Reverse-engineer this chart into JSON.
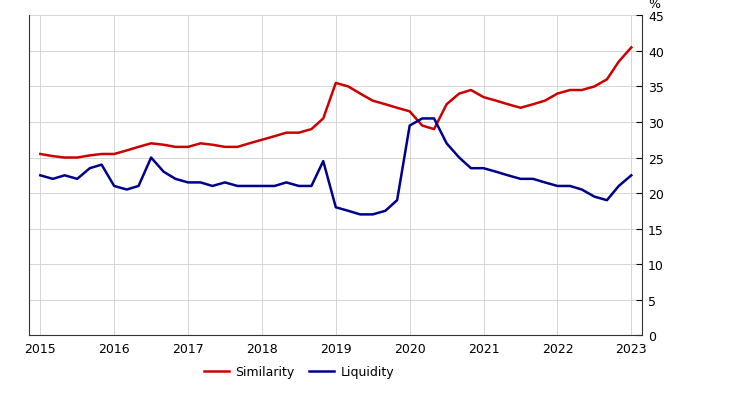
{
  "similarity": [
    [
      2015.0,
      25.5
    ],
    [
      2015.17,
      25.2
    ],
    [
      2015.33,
      25.0
    ],
    [
      2015.5,
      25.0
    ],
    [
      2015.67,
      25.3
    ],
    [
      2015.83,
      25.5
    ],
    [
      2016.0,
      25.5
    ],
    [
      2016.17,
      26.0
    ],
    [
      2016.33,
      26.5
    ],
    [
      2016.5,
      27.0
    ],
    [
      2016.67,
      26.8
    ],
    [
      2016.83,
      26.5
    ],
    [
      2017.0,
      26.5
    ],
    [
      2017.17,
      27.0
    ],
    [
      2017.33,
      26.8
    ],
    [
      2017.5,
      26.5
    ],
    [
      2017.67,
      26.5
    ],
    [
      2017.83,
      27.0
    ],
    [
      2018.0,
      27.5
    ],
    [
      2018.17,
      28.0
    ],
    [
      2018.33,
      28.5
    ],
    [
      2018.5,
      28.5
    ],
    [
      2018.67,
      29.0
    ],
    [
      2018.83,
      30.5
    ],
    [
      2019.0,
      35.5
    ],
    [
      2019.17,
      35.0
    ],
    [
      2019.33,
      34.0
    ],
    [
      2019.5,
      33.0
    ],
    [
      2019.67,
      32.5
    ],
    [
      2019.83,
      32.0
    ],
    [
      2020.0,
      31.5
    ],
    [
      2020.17,
      29.5
    ],
    [
      2020.33,
      29.0
    ],
    [
      2020.5,
      32.5
    ],
    [
      2020.67,
      34.0
    ],
    [
      2020.83,
      34.5
    ],
    [
      2021.0,
      33.5
    ],
    [
      2021.17,
      33.0
    ],
    [
      2021.33,
      32.5
    ],
    [
      2021.5,
      32.0
    ],
    [
      2021.67,
      32.5
    ],
    [
      2021.83,
      33.0
    ],
    [
      2022.0,
      34.0
    ],
    [
      2022.17,
      34.5
    ],
    [
      2022.33,
      34.5
    ],
    [
      2022.5,
      35.0
    ],
    [
      2022.67,
      36.0
    ],
    [
      2022.83,
      38.5
    ],
    [
      2023.0,
      40.5
    ]
  ],
  "liquidity": [
    [
      2015.0,
      22.5
    ],
    [
      2015.17,
      22.0
    ],
    [
      2015.33,
      22.5
    ],
    [
      2015.5,
      22.0
    ],
    [
      2015.67,
      23.5
    ],
    [
      2015.83,
      24.0
    ],
    [
      2016.0,
      21.0
    ],
    [
      2016.17,
      20.5
    ],
    [
      2016.33,
      21.0
    ],
    [
      2016.5,
      25.0
    ],
    [
      2016.67,
      23.0
    ],
    [
      2016.83,
      22.0
    ],
    [
      2017.0,
      21.5
    ],
    [
      2017.17,
      21.5
    ],
    [
      2017.33,
      21.0
    ],
    [
      2017.5,
      21.5
    ],
    [
      2017.67,
      21.0
    ],
    [
      2017.83,
      21.0
    ],
    [
      2018.0,
      21.0
    ],
    [
      2018.17,
      21.0
    ],
    [
      2018.33,
      21.5
    ],
    [
      2018.5,
      21.0
    ],
    [
      2018.67,
      21.0
    ],
    [
      2018.83,
      24.5
    ],
    [
      2019.0,
      18.0
    ],
    [
      2019.17,
      17.5
    ],
    [
      2019.33,
      17.0
    ],
    [
      2019.5,
      17.0
    ],
    [
      2019.67,
      17.5
    ],
    [
      2019.83,
      19.0
    ],
    [
      2020.0,
      29.5
    ],
    [
      2020.17,
      30.5
    ],
    [
      2020.33,
      30.5
    ],
    [
      2020.5,
      27.0
    ],
    [
      2020.67,
      25.0
    ],
    [
      2020.83,
      23.5
    ],
    [
      2021.0,
      23.5
    ],
    [
      2021.17,
      23.0
    ],
    [
      2021.33,
      22.5
    ],
    [
      2021.5,
      22.0
    ],
    [
      2021.67,
      22.0
    ],
    [
      2021.83,
      21.5
    ],
    [
      2022.0,
      21.0
    ],
    [
      2022.17,
      21.0
    ],
    [
      2022.33,
      20.5
    ],
    [
      2022.5,
      19.5
    ],
    [
      2022.67,
      19.0
    ],
    [
      2022.83,
      21.0
    ],
    [
      2023.0,
      22.5
    ]
  ],
  "similarity_color": "#cc0000",
  "liquidity_color": "#00008b",
  "background_color": "#ffffff",
  "grid_color": "#d0d0d0",
  "ylim": [
    0,
    45
  ],
  "yticks": [
    0,
    5,
    10,
    15,
    20,
    25,
    30,
    35,
    40,
    45
  ],
  "xlim_min": 2014.85,
  "xlim_max": 2023.15,
  "xticks": [
    2015,
    2016,
    2017,
    2018,
    2019,
    2020,
    2021,
    2022,
    2023
  ],
  "ylabel": "%",
  "legend_similarity": "Similarity",
  "legend_liquidity": "Liquidity",
  "line_width": 1.8
}
